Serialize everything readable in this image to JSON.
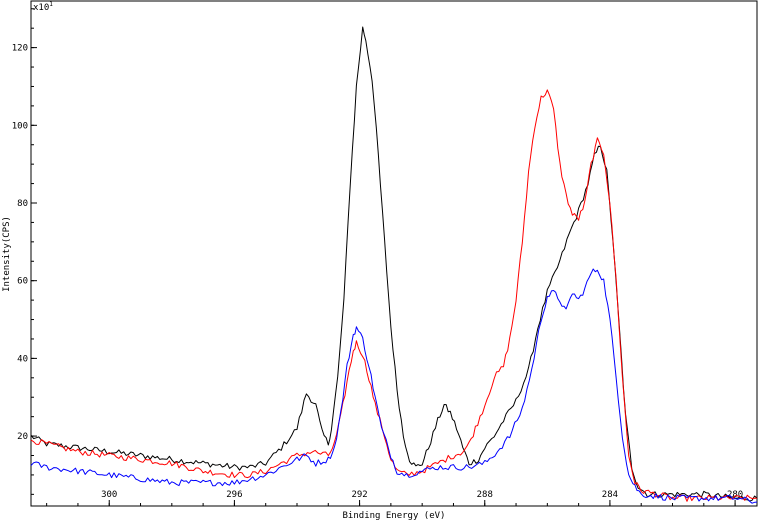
{
  "chart_data": {
    "type": "line",
    "title": "",
    "xlabel": "Binding Energy (eV)",
    "ylabel": "Intensity(CPS)",
    "y_multiplier_label": "x10",
    "y_multiplier_exponent": "1",
    "xlim": [
      302.5,
      279.3
    ],
    "ylim": [
      2,
      132
    ],
    "x_reversed": true,
    "grid": false,
    "legend": "none",
    "x_ticks": [
      300,
      296,
      292,
      288,
      284,
      280
    ],
    "y_ticks": [
      20,
      40,
      60,
      80,
      100,
      120
    ],
    "series": [
      {
        "color": "#000000",
        "points": [
          [
            302.5,
            20
          ],
          [
            302,
            18
          ],
          [
            301,
            17
          ],
          [
            300,
            16
          ],
          [
            299,
            15
          ],
          [
            298,
            14
          ],
          [
            297,
            13
          ],
          [
            296,
            12
          ],
          [
            295.5,
            12
          ],
          [
            295,
            13
          ],
          [
            294.5,
            17
          ],
          [
            294,
            22
          ],
          [
            293.7,
            31
          ],
          [
            293.4,
            28
          ],
          [
            293.2,
            21
          ],
          [
            293,
            18
          ],
          [
            292.9,
            22
          ],
          [
            292.7,
            35
          ],
          [
            292.5,
            55
          ],
          [
            292.3,
            85
          ],
          [
            292.1,
            110
          ],
          [
            291.9,
            125
          ],
          [
            291.8,
            122
          ],
          [
            291.6,
            112
          ],
          [
            291.4,
            92
          ],
          [
            291.2,
            70
          ],
          [
            291,
            48
          ],
          [
            290.8,
            32
          ],
          [
            290.6,
            20
          ],
          [
            290.4,
            14
          ],
          [
            290.2,
            12
          ],
          [
            290,
            13
          ],
          [
            289.8,
            17
          ],
          [
            289.5,
            24
          ],
          [
            289.3,
            28
          ],
          [
            289.1,
            26
          ],
          [
            288.9,
            22
          ],
          [
            288.7,
            17
          ],
          [
            288.5,
            13
          ],
          [
            288.2,
            14
          ],
          [
            288,
            17
          ],
          [
            287.7,
            20
          ],
          [
            287.4,
            24
          ],
          [
            287,
            29
          ],
          [
            286.6,
            37
          ],
          [
            286.3,
            48
          ],
          [
            286,
            57
          ],
          [
            285.6,
            65
          ],
          [
            285.3,
            72
          ],
          [
            285,
            78
          ],
          [
            284.7,
            85
          ],
          [
            284.5,
            92
          ],
          [
            284.3,
            95
          ],
          [
            284.1,
            88
          ],
          [
            283.9,
            70
          ],
          [
            283.7,
            48
          ],
          [
            283.5,
            25
          ],
          [
            283.3,
            12
          ],
          [
            283.1,
            7
          ],
          [
            282.8,
            5
          ],
          [
            282,
            5
          ],
          [
            281,
            5
          ],
          [
            280,
            4
          ],
          [
            279.3,
            4
          ]
        ]
      },
      {
        "color": "#ff0000",
        "points": [
          [
            302.5,
            19
          ],
          [
            302,
            18
          ],
          [
            301,
            16
          ],
          [
            300,
            15
          ],
          [
            299,
            14
          ],
          [
            298,
            13
          ],
          [
            297,
            11
          ],
          [
            296,
            10
          ],
          [
            295.5,
            10
          ],
          [
            295,
            11
          ],
          [
            294.5,
            13
          ],
          [
            294,
            15
          ],
          [
            293.5,
            16
          ],
          [
            293,
            15
          ],
          [
            292.8,
            18
          ],
          [
            292.6,
            25
          ],
          [
            292.4,
            34
          ],
          [
            292.2,
            42
          ],
          [
            292.1,
            44
          ],
          [
            291.9,
            41
          ],
          [
            291.7,
            35
          ],
          [
            291.5,
            28
          ],
          [
            291.2,
            20
          ],
          [
            291,
            14
          ],
          [
            290.8,
            11
          ],
          [
            290.5,
            10
          ],
          [
            290,
            11
          ],
          [
            289.5,
            13
          ],
          [
            289,
            15
          ],
          [
            288.7,
            16
          ],
          [
            288.5,
            18
          ],
          [
            288.3,
            22
          ],
          [
            288,
            28
          ],
          [
            287.7,
            35
          ],
          [
            287.4,
            38
          ],
          [
            287.2,
            45
          ],
          [
            287,
            55
          ],
          [
            286.8,
            70
          ],
          [
            286.6,
            88
          ],
          [
            286.4,
            100
          ],
          [
            286.2,
            107
          ],
          [
            286,
            109
          ],
          [
            285.8,
            104
          ],
          [
            285.6,
            90
          ],
          [
            285.4,
            82
          ],
          [
            285.2,
            77
          ],
          [
            285,
            76
          ],
          [
            284.8,
            80
          ],
          [
            284.6,
            90
          ],
          [
            284.4,
            96
          ],
          [
            284.2,
            93
          ],
          [
            284,
            80
          ],
          [
            283.8,
            60
          ],
          [
            283.6,
            35
          ],
          [
            283.4,
            15
          ],
          [
            283.2,
            8
          ],
          [
            283,
            6
          ],
          [
            282,
            4
          ],
          [
            281,
            4
          ],
          [
            280,
            4
          ],
          [
            279.3,
            4
          ]
        ]
      },
      {
        "color": "#0000ff",
        "points": [
          [
            302.5,
            13
          ],
          [
            302,
            12
          ],
          [
            301,
            11
          ],
          [
            300,
            10
          ],
          [
            299,
            9
          ],
          [
            298,
            8
          ],
          [
            297,
            8
          ],
          [
            296,
            8
          ],
          [
            295.5,
            9
          ],
          [
            295,
            10
          ],
          [
            294.5,
            12
          ],
          [
            294,
            14
          ],
          [
            293.7,
            15
          ],
          [
            293.4,
            13
          ],
          [
            293,
            14
          ],
          [
            292.8,
            17
          ],
          [
            292.6,
            26
          ],
          [
            292.4,
            38
          ],
          [
            292.2,
            46
          ],
          [
            292.1,
            48
          ],
          [
            291.9,
            45
          ],
          [
            291.7,
            38
          ],
          [
            291.5,
            30
          ],
          [
            291.3,
            22
          ],
          [
            291,
            15
          ],
          [
            290.8,
            11
          ],
          [
            290.5,
            10
          ],
          [
            290,
            11
          ],
          [
            289.5,
            12
          ],
          [
            289,
            12
          ],
          [
            288.5,
            12
          ],
          [
            288,
            13
          ],
          [
            287.6,
            16
          ],
          [
            287.2,
            20
          ],
          [
            286.8,
            27
          ],
          [
            286.5,
            37
          ],
          [
            286.2,
            50
          ],
          [
            286,
            56
          ],
          [
            285.8,
            57
          ],
          [
            285.6,
            55
          ],
          [
            285.4,
            52
          ],
          [
            285.2,
            57
          ],
          [
            285,
            55
          ],
          [
            284.8,
            58
          ],
          [
            284.6,
            62
          ],
          [
            284.4,
            63
          ],
          [
            284.2,
            60
          ],
          [
            284,
            50
          ],
          [
            283.8,
            35
          ],
          [
            283.6,
            20
          ],
          [
            283.4,
            10
          ],
          [
            283.2,
            7
          ],
          [
            283,
            5
          ],
          [
            282,
            4
          ],
          [
            281,
            4
          ],
          [
            280,
            4
          ],
          [
            279.3,
            3
          ]
        ]
      }
    ]
  }
}
